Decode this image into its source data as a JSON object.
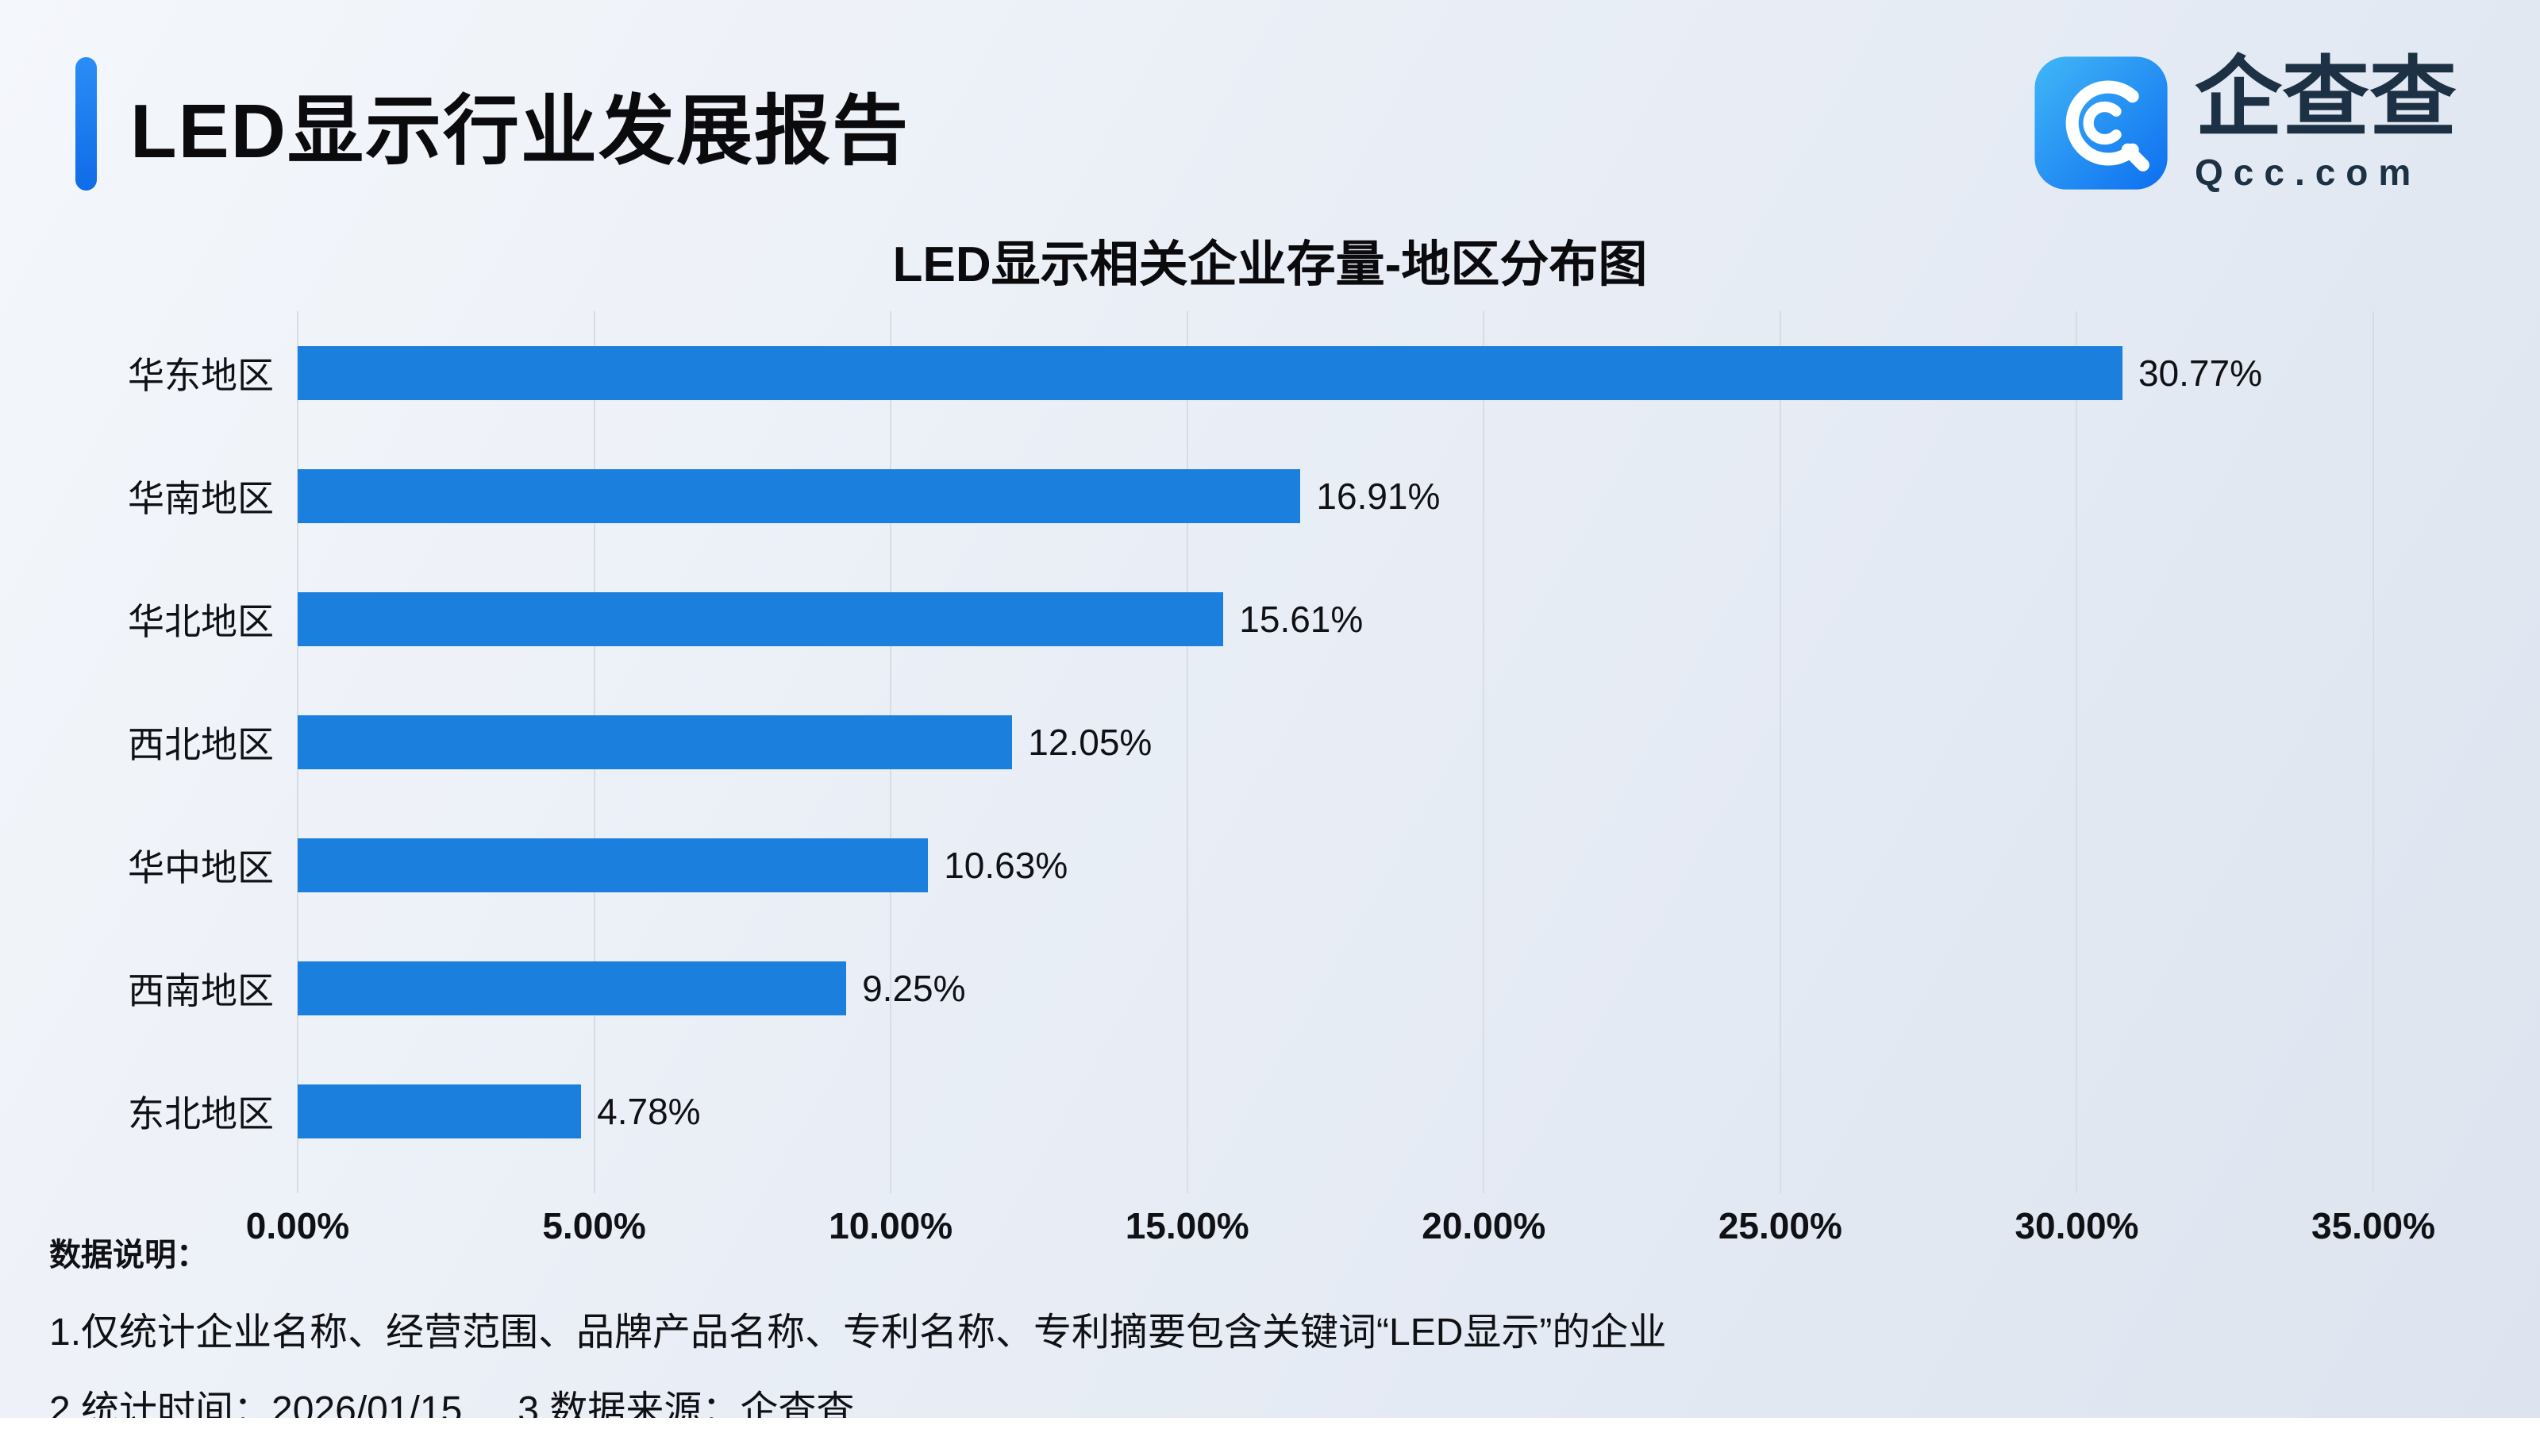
{
  "header": {
    "title": "LED显示行业发展报告",
    "accent_color": "#1677f0"
  },
  "logo": {
    "brand_cn": "企查查",
    "brand_en": "Qcc.com",
    "icon": "qcc-magnifier-icon",
    "icon_color": "#1f89f4",
    "text_color": "#1d3144"
  },
  "chart_data": {
    "type": "bar",
    "orientation": "horizontal",
    "title": "LED显示相关企业存量-地区分布图",
    "categories": [
      "华东地区",
      "华南地区",
      "华北地区",
      "西北地区",
      "华中地区",
      "西南地区",
      "东北地区"
    ],
    "values": [
      30.77,
      16.91,
      15.61,
      12.05,
      10.63,
      9.25,
      4.78
    ],
    "value_labels": [
      "30.77%",
      "16.91%",
      "15.61%",
      "12.05%",
      "10.63%",
      "9.25%",
      "4.78%"
    ],
    "x_ticks": [
      "0.00%",
      "5.00%",
      "10.00%",
      "15.00%",
      "20.00%",
      "25.00%",
      "30.00%",
      "35.00%"
    ],
    "xlim": [
      0,
      35
    ],
    "xlabel": "",
    "ylabel": "",
    "bar_color": "#1b7fdd",
    "grid": true,
    "legend": false
  },
  "footnotes": {
    "heading": "数据说明：",
    "line1": "1.仅统计企业名称、经营范围、品牌产品名称、专利名称、专利摘要包含关键词“LED显示”的企业",
    "line2_time": "2.统计时间：2026/01/15",
    "line2_source": "3.数据来源：企查查"
  }
}
